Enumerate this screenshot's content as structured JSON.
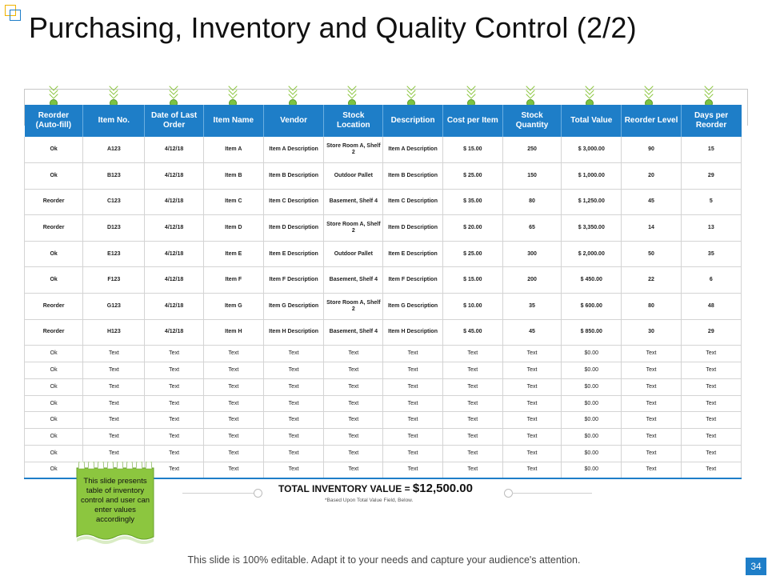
{
  "slide": {
    "title": "Purchasing, Inventory and Quality Control (2/2)",
    "footer": "This slide is 100% editable. Adapt it to your needs and capture your audience's attention.",
    "page_number": "34",
    "accent_blue": "#1e7ec8",
    "accent_green": "#7dc243"
  },
  "table": {
    "headers": [
      "Reorder (Auto-fill)",
      "Item No.",
      "Date of Last Order",
      "Item Name",
      "Vendor",
      "Stock Location",
      "Description",
      "Cost per Item",
      "Stock Quantity",
      "Total Value",
      "Reorder Level",
      "Days per Reorder"
    ],
    "rows": [
      [
        "Ok",
        "A123",
        "4/12/18",
        "Item A",
        "Item A Description",
        "Store Room A, Shelf 2",
        "Item A Description",
        "$ 15.00",
        "250",
        "$ 3,000.00",
        "90",
        "15"
      ],
      [
        "Ok",
        "B123",
        "4/12/18",
        "Item B",
        "Item B Description",
        "Outdoor Pallet",
        "Item B Description",
        "$ 25.00",
        "150",
        "$ 1,000.00",
        "20",
        "29"
      ],
      [
        "Reorder",
        "C123",
        "4/12/18",
        "Item C",
        "Item C Description",
        "Basement, Shelf 4",
        "Item C Description",
        "$ 35.00",
        "80",
        "$ 1,250.00",
        "45",
        "5"
      ],
      [
        "Reorder",
        "D123",
        "4/12/18",
        "Item D",
        "Item D Description",
        "Store Room A, Shelf 2",
        "Item D Description",
        "$ 20.00",
        "65",
        "$ 3,350.00",
        "14",
        "13"
      ],
      [
        "Ok",
        "E123",
        "4/12/18",
        "Item E",
        "Item E Description",
        "Outdoor Pallet",
        "Item E Description",
        "$ 25.00",
        "300",
        "$ 2,000.00",
        "50",
        "35"
      ],
      [
        "Ok",
        "F123",
        "4/12/18",
        "Item F",
        "Item F Description",
        "Basement, Shelf 4",
        "Item F Description",
        "$ 15.00",
        "200",
        "$ 450.00",
        "22",
        "6"
      ],
      [
        "Reorder",
        "G123",
        "4/12/18",
        "Item G",
        "Item G Description",
        "Store Room A, Shelf 2",
        "Item G Description",
        "$ 10.00",
        "35",
        "$ 600.00",
        "80",
        "48"
      ],
      [
        "Reorder",
        "H123",
        "4/12/18",
        "Item H",
        "Item H Description",
        "Basement, Shelf 4",
        "Item H Description",
        "$ 45.00",
        "45",
        "$ 850.00",
        "30",
        "29"
      ],
      [
        "Ok",
        "Text",
        "Text",
        "Text",
        "Text",
        "Text",
        "Text",
        "Text",
        "Text",
        "$0.00",
        "Text",
        "Text"
      ],
      [
        "Ok",
        "Text",
        "Text",
        "Text",
        "Text",
        "Text",
        "Text",
        "Text",
        "Text",
        "$0.00",
        "Text",
        "Text"
      ],
      [
        "Ok",
        "Text",
        "Text",
        "Text",
        "Text",
        "Text",
        "Text",
        "Text",
        "Text",
        "$0.00",
        "Text",
        "Text"
      ],
      [
        "Ok",
        "Text",
        "Text",
        "Text",
        "Text",
        "Text",
        "Text",
        "Text",
        "Text",
        "$0.00",
        "Text",
        "Text"
      ],
      [
        "Ok",
        "Text",
        "Text",
        "Text",
        "Text",
        "Text",
        "Text",
        "Text",
        "Text",
        "$0.00",
        "Text",
        "Text"
      ],
      [
        "Ok",
        "Text",
        "Text",
        "Text",
        "Text",
        "Text",
        "Text",
        "Text",
        "Text",
        "$0.00",
        "Text",
        "Text"
      ],
      [
        "Ok",
        "Text",
        "Text",
        "Text",
        "Text",
        "Text",
        "Text",
        "Text",
        "Text",
        "$0.00",
        "Text",
        "Text"
      ],
      [
        "Ok",
        "Text",
        "Text",
        "Text",
        "Text",
        "Text",
        "Text",
        "Text",
        "Text",
        "$0.00",
        "Text",
        "Text"
      ]
    ]
  },
  "total": {
    "label": "TOTAL INVENTORY VALUE = ",
    "amount": "$12,500.00",
    "note": "*Based Upon Total Value Field, Below."
  },
  "callout": {
    "text": "This slide presents table of inventory control and user can enter values accordingly"
  }
}
